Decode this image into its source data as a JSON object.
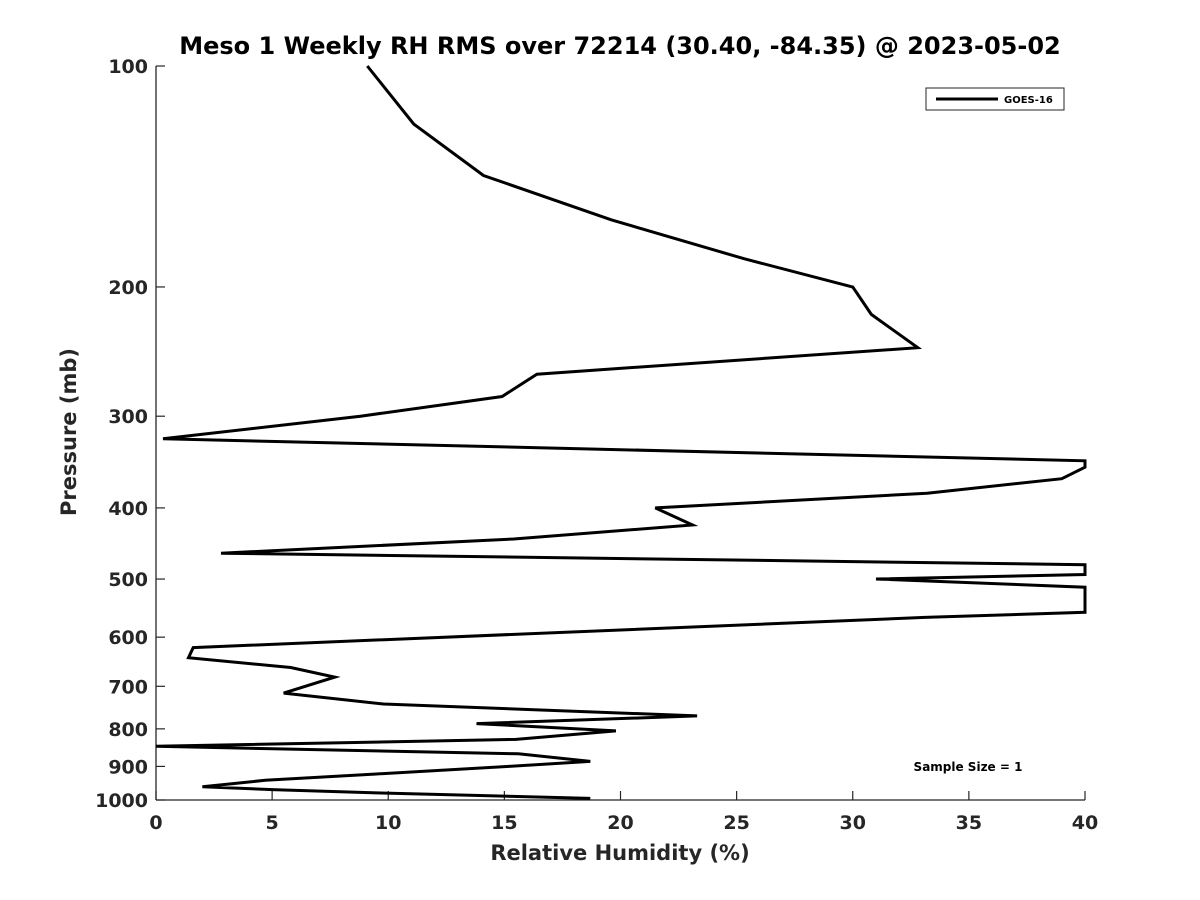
{
  "chart_data": {
    "type": "line",
    "title": "Meso 1 Weekly RH RMS over 72214 (30.40, -84.35) @ 2023-05-02",
    "xlabel": "Relative Humidity (%)",
    "ylabel": "Pressure (mb)",
    "xlim": [
      0,
      40
    ],
    "ylim": [
      1000,
      100
    ],
    "y_scale": "log",
    "x_ticks": [
      0,
      5,
      10,
      15,
      20,
      25,
      30,
      35,
      40
    ],
    "y_ticks": [
      100,
      200,
      300,
      400,
      500,
      600,
      700,
      800,
      900,
      1000
    ],
    "grid": false,
    "legend_position": "top-right",
    "annotation": "Sample Size = 1",
    "series": [
      {
        "name": "GOES-16",
        "color": "#000000",
        "x": [
          9.1,
          11.1,
          14.1,
          19.6,
          25.3,
          30.0,
          30.8,
          32.8,
          16.4,
          14.9,
          8.8,
          0.3,
          40.0,
          40.0,
          39.0,
          33.2,
          21.5,
          23.1,
          15.4,
          2.8,
          40.0,
          40.0,
          31.0,
          40.0,
          40.0,
          33.1,
          1.6,
          1.4,
          5.8,
          7.7,
          5.5,
          9.8,
          23.3,
          13.8,
          19.8,
          15.5,
          0.0,
          15.6,
          18.7,
          15.2,
          9.4,
          4.7,
          2.0,
          5.0,
          9.5,
          18.7
        ],
        "y": [
          100,
          120,
          141,
          162,
          183,
          200,
          218,
          242,
          263,
          282,
          300,
          322,
          345,
          352,
          365,
          382,
          400,
          422,
          441,
          461,
          478,
          493,
          500,
          513,
          555,
          564,
          620,
          640,
          660,
          680,
          715,
          740,
          768,
          787,
          805,
          827,
          845,
          865,
          886,
          900,
          922,
          940,
          959,
          968,
          978,
          995
        ]
      }
    ]
  }
}
